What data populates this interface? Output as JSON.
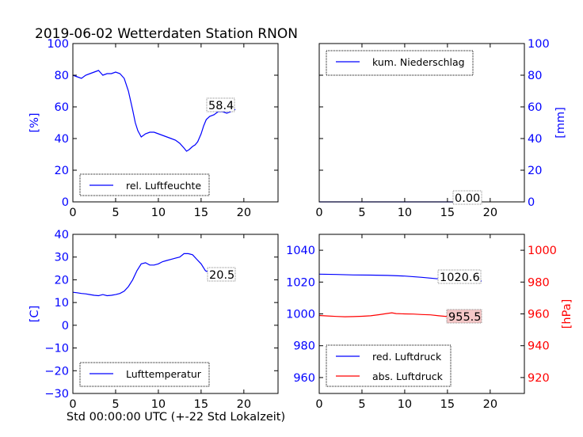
{
  "title": "2019-06-02 Wetterdaten Station RNON",
  "xlabel": "Std 00:00:00 UTC (+-22 Std Lokalzeit)",
  "colors": {
    "blue": "#0000ff",
    "red": "#ff0000",
    "annot_bg": "#ffffff",
    "annot_red_bg": "#f5c8c8"
  },
  "chart_data": [
    {
      "id": "humidity",
      "type": "line",
      "xlim": [
        0,
        24
      ],
      "ylim": [
        0,
        100
      ],
      "xticks": [
        0,
        5,
        10,
        15,
        20
      ],
      "yticks": [
        0,
        20,
        40,
        60,
        80,
        100
      ],
      "ylabel": "[%]",
      "axis_color": "#0000ff",
      "legend": "rel. Luftfeuchte",
      "legend_loc": "lower-left",
      "annotation": "58.4",
      "series": [
        {
          "name": "rel. Luftfeuchte",
          "color": "#0000ff",
          "x": [
            0,
            0.5,
            1,
            1.5,
            2,
            2.5,
            3,
            3.5,
            4,
            4.5,
            5,
            5.5,
            6,
            6.5,
            7,
            7.3,
            7.6,
            8,
            8.5,
            9,
            9.5,
            10,
            10.5,
            11,
            11.5,
            12,
            12.5,
            13,
            13.3,
            13.6,
            14,
            14.3,
            14.6,
            15,
            15.3,
            15.6,
            16,
            16.5,
            17,
            17.5,
            18,
            18.5,
            19
          ],
          "y": [
            80,
            79,
            78,
            80,
            81,
            82,
            83,
            80,
            81,
            81,
            82,
            81,
            78,
            70,
            58,
            50,
            45,
            41,
            43,
            44,
            44,
            43,
            42,
            41,
            40,
            39,
            37,
            34,
            32,
            33,
            35,
            36,
            38,
            43,
            48,
            52,
            54,
            55,
            57,
            57,
            56,
            57,
            58.4
          ]
        }
      ]
    },
    {
      "id": "precipitation",
      "type": "line",
      "xlim": [
        0,
        24
      ],
      "ylim": [
        0,
        100
      ],
      "xticks": [
        0,
        5,
        10,
        15,
        20
      ],
      "yticks": [
        0,
        20,
        40,
        60,
        80,
        100
      ],
      "ylabel": "[mm]",
      "axis_color": "#0000ff",
      "yaxis_side": "right",
      "legend": "kum. Niederschlag",
      "legend_loc": "upper-left",
      "annotation": "0.00",
      "series": [
        {
          "name": "kum. Niederschlag",
          "color": "#0000ff",
          "x": [
            0,
            5,
            10,
            15,
            19
          ],
          "y": [
            0,
            0,
            0,
            0,
            0
          ]
        }
      ]
    },
    {
      "id": "temperature",
      "type": "line",
      "xlim": [
        0,
        24
      ],
      "ylim": [
        -30,
        40
      ],
      "xticks": [
        0,
        5,
        10,
        15,
        20
      ],
      "yticks": [
        -30,
        -20,
        -10,
        0,
        10,
        20,
        30,
        40
      ],
      "ylabel": "[C]",
      "axis_color": "#0000ff",
      "legend": "Lufttemperatur",
      "legend_loc": "lower-left",
      "annotation": "20.5",
      "series": [
        {
          "name": "Lufttemperatur",
          "color": "#0000ff",
          "x": [
            0,
            0.5,
            1,
            1.5,
            2,
            2.5,
            3,
            3.5,
            4,
            4.5,
            5,
            5.5,
            6,
            6.5,
            7,
            7.5,
            8,
            8.5,
            9,
            9.5,
            10,
            10.5,
            11,
            11.5,
            12,
            12.5,
            13,
            13.5,
            14,
            14.5,
            15,
            15.5,
            16,
            16.5,
            17,
            17.5,
            18,
            18.5,
            19
          ],
          "y": [
            14.5,
            14.3,
            14,
            13.8,
            13.5,
            13.2,
            13,
            13.5,
            13,
            13.2,
            13.5,
            14,
            15,
            17,
            20,
            24,
            27,
            27.5,
            26.5,
            26.5,
            27,
            28,
            28.5,
            29,
            29.5,
            30,
            31.5,
            31.5,
            31,
            29,
            27,
            24,
            23,
            22,
            21.5,
            21,
            21,
            20.8,
            20.5
          ]
        }
      ]
    },
    {
      "id": "pressure",
      "type": "line",
      "xlim": [
        0,
        24
      ],
      "ylim": [
        950,
        1050
      ],
      "ylim_right": [
        910,
        1010
      ],
      "xticks": [
        0,
        5,
        10,
        15,
        20
      ],
      "yticks": [
        960,
        980,
        1000,
        1020,
        1040
      ],
      "yticks_right": [
        920,
        940,
        960,
        980,
        1000
      ],
      "ylabel_right": "[hPa]",
      "axis_color": "#0000ff",
      "axis_color_right": "#ff0000",
      "legend_loc": "lower-left",
      "annotations": [
        "1020.6",
        "955.5"
      ],
      "series": [
        {
          "name": "red. Luftdruck",
          "color": "#0000ff",
          "axis": "left",
          "x": [
            0,
            2,
            4,
            6,
            8,
            10,
            12,
            14,
            16,
            18,
            19
          ],
          "y": [
            1025,
            1024.8,
            1024.5,
            1024.4,
            1024.2,
            1023.8,
            1023,
            1022,
            1021.3,
            1020.8,
            1020.6
          ]
        },
        {
          "name": "abs. Luftdruck",
          "color": "#ff0000",
          "axis": "right",
          "x": [
            0,
            1,
            2,
            3,
            4,
            5,
            6,
            7,
            8,
            8.5,
            9,
            10,
            11,
            12,
            13,
            14,
            15,
            16,
            17,
            18,
            19
          ],
          "y": [
            959,
            958.7,
            958.4,
            958.2,
            958.3,
            958.5,
            958.8,
            959.5,
            960.3,
            960.7,
            960.2,
            960,
            959.9,
            959.6,
            959.4,
            958.8,
            958.3,
            957.5,
            956.5,
            955.8,
            955.5
          ]
        }
      ]
    }
  ]
}
